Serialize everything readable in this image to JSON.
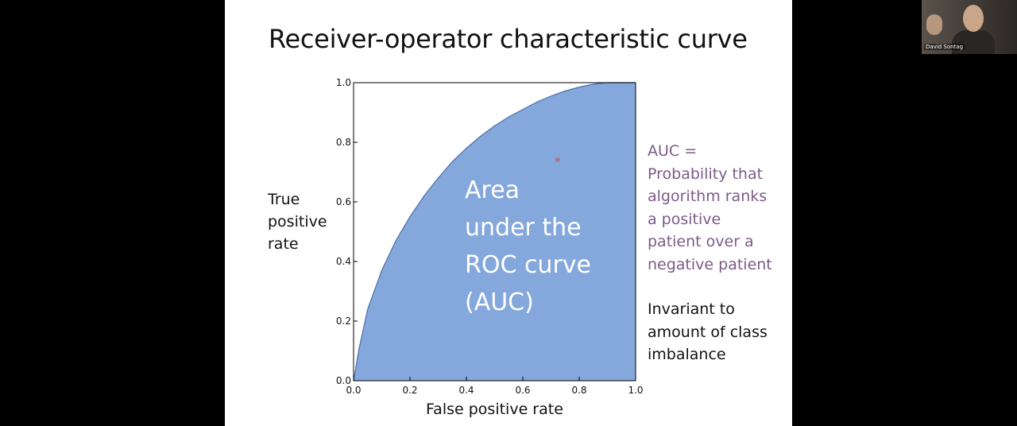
{
  "slide": {
    "title": "Receiver-operator characteristic curve",
    "area_label": [
      "Area",
      "under the",
      "ROC curve",
      "(AUC)"
    ],
    "auc_note": [
      "AUC =",
      "Probability that",
      "algorithm ranks",
      "a positive",
      "patient over a",
      "negative patient"
    ],
    "invariant_note": [
      "Invariant to",
      "amount of class",
      "imbalance"
    ]
  },
  "chart_data": {
    "type": "area",
    "xlabel": "False positive rate",
    "ylabel_lines": [
      "True",
      "positive",
      "rate"
    ],
    "xlim": [
      0,
      1
    ],
    "ylim": [
      0,
      1
    ],
    "x_ticks": [
      "0.0",
      "0.2",
      "0.4",
      "0.6",
      "0.8",
      "1.0"
    ],
    "y_ticks": [
      "0.0",
      "0.2",
      "0.4",
      "0.6",
      "0.8",
      "1.0"
    ],
    "fill_color": "#85a8dc",
    "series": [
      {
        "x": [
          0,
          0.02,
          0.05,
          0.1,
          0.15,
          0.2,
          0.25,
          0.3,
          0.35,
          0.4,
          0.45,
          0.5,
          0.55,
          0.6,
          0.65,
          0.7,
          0.75,
          0.8,
          0.85,
          0.9,
          0.95,
          1.0
        ],
        "y": [
          0,
          0.11,
          0.24,
          0.37,
          0.47,
          0.55,
          0.62,
          0.68,
          0.735,
          0.78,
          0.82,
          0.855,
          0.885,
          0.91,
          0.935,
          0.955,
          0.972,
          0.985,
          0.995,
          1.0,
          1.0,
          1.0
        ]
      }
    ]
  },
  "webcam": {
    "name_label": "David Sontag"
  },
  "colors": {
    "auc_note": "#7b5b87",
    "area_fill": "#85a8dc",
    "background": "#000000",
    "slide": "#ffffff"
  }
}
